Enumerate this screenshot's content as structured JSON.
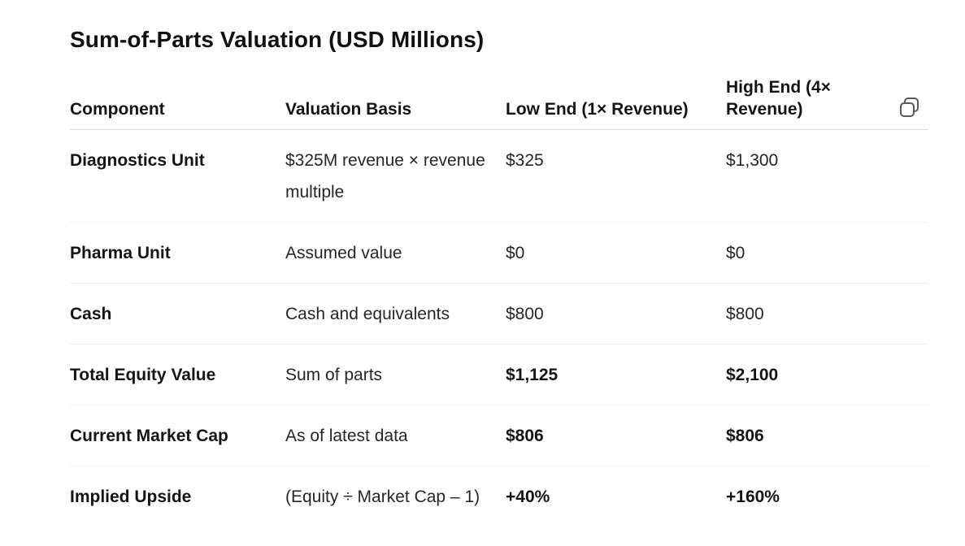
{
  "title": "Sum-of-Parts Valuation (USD Millions)",
  "table": {
    "headers": [
      "Component",
      "Valuation Basis",
      "Low End (1× Revenue)",
      "High End (4× Revenue)"
    ],
    "rows": [
      [
        "Diagnostics Unit",
        "$325M revenue × revenue multiple",
        "$325",
        "$1,300"
      ],
      [
        "Pharma Unit",
        "Assumed value",
        "$0",
        "$0"
      ],
      [
        "Cash",
        "Cash and equivalents",
        "$800",
        "$800"
      ],
      [
        "Total Equity Value",
        "Sum of parts",
        "$1,125",
        "$2,100"
      ],
      [
        "Current Market Cap",
        "As of latest data",
        "$806",
        "$806"
      ],
      [
        "Implied Upside",
        "(Equity ÷ Market Cap – 1)",
        "+40%",
        "+160%"
      ]
    ],
    "bold_value_rows": [
      3,
      4,
      5
    ]
  },
  "copy_button": {
    "icon": "copy-icon"
  }
}
